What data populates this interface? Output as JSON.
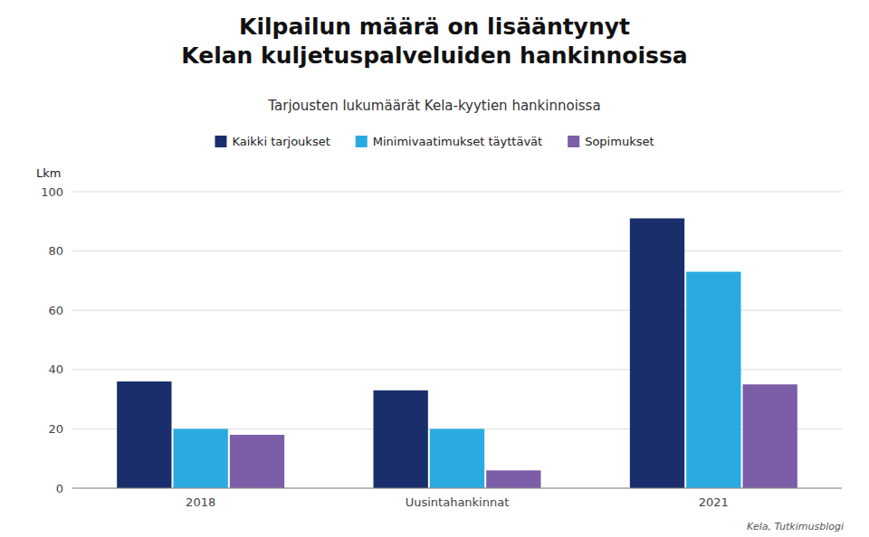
{
  "chart_data": {
    "type": "bar",
    "title": "Kilpailun määrä on lisääntynyt\nKelan kuljetuspalveluiden hankinnoissa",
    "subtitle": "Tarjousten lukumäärät Kela-kyytien hankinnoissa",
    "categories": [
      "2018",
      "Uusintahankinnat",
      "2021"
    ],
    "series": [
      {
        "name": "Kaikki tarjoukset",
        "values": [
          36,
          33,
          91
        ],
        "color": "#1a2e6b"
      },
      {
        "name": "Minimivaatimukset täyttävät",
        "values": [
          20,
          20,
          73
        ],
        "color": "#29abe2"
      },
      {
        "name": "Sopimukset",
        "values": [
          18,
          6,
          35
        ],
        "color": "#7b5ea7"
      }
    ],
    "ylabel": "Lkm",
    "ylim": [
      0,
      100
    ],
    "yticks": [
      0,
      20,
      40,
      60,
      80,
      100
    ],
    "grid": true,
    "legend": "top",
    "source": "Kela, Tutkimusblogi"
  }
}
